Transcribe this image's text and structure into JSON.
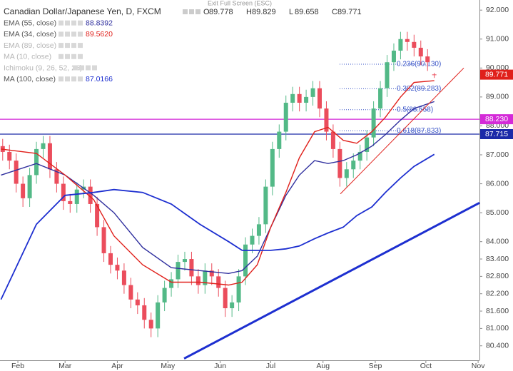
{
  "chart_data": {
    "type": "candlestick",
    "title": "Canadian Dollar/Japanese Yen, D, FXCM",
    "ohlc": [
      {
        "key": "O",
        "value": 89.778
      },
      {
        "key": "H",
        "value": 89.829
      },
      {
        "key": "L",
        "value": 89.658
      },
      {
        "key": "C",
        "value": 89.771
      }
    ],
    "exit_hint": "Exit Full Screen (ESC)",
    "up_color": "#53b987",
    "down_color": "#eb4d5c",
    "x": [
      23,
      27,
      31,
      35,
      39,
      43,
      47,
      51,
      55,
      59,
      63,
      67,
      71,
      75,
      79,
      83,
      87,
      91,
      95,
      99,
      103,
      107,
      111,
      115,
      119,
      123,
      127,
      131,
      135,
      139,
      143,
      147,
      151,
      155,
      159,
      163,
      167,
      171,
      175,
      179,
      183,
      187,
      191,
      195,
      199,
      203,
      207,
      211,
      215,
      219,
      223,
      227,
      231,
      235,
      239,
      243,
      247,
      251,
      255,
      259,
      263,
      267,
      271,
      275,
      279
    ],
    "open": [
      87.3,
      87.1,
      86.8,
      86.0,
      85.5,
      86.3,
      87.2,
      87.4,
      86.5,
      86.0,
      85.4,
      85.3,
      85.8,
      85.9,
      85.3,
      84.5,
      83.6,
      83.2,
      83.0,
      82.5,
      82.0,
      81.8,
      81.3,
      81.0,
      81.9,
      82.4,
      82.7,
      83.3,
      83.4,
      82.8,
      82.5,
      83.0,
      82.8,
      82.4,
      81.7,
      81.9,
      82.8,
      83.9,
      84.2,
      84.6,
      85.9,
      87.2,
      87.8,
      88.8,
      89.1,
      88.8,
      89.0,
      89.3,
      88.6,
      87.8,
      87.2,
      86.2,
      86.5,
      86.8,
      87.1,
      87.6,
      88.6,
      89.3,
      90.2,
      90.6,
      91.0,
      90.9,
      90.7,
      90.4,
      89.778
    ],
    "high": [
      87.55,
      87.35,
      87.05,
      86.25,
      86.55,
      87.45,
      87.65,
      87.65,
      86.75,
      86.25,
      85.65,
      86.05,
      86.15,
      86.15,
      85.55,
      84.75,
      83.85,
      83.45,
      83.25,
      82.75,
      82.25,
      82.05,
      81.55,
      82.15,
      82.65,
      82.95,
      83.55,
      83.65,
      83.65,
      83.05,
      83.25,
      83.25,
      83.05,
      82.65,
      82.15,
      83.05,
      84.15,
      84.45,
      84.85,
      86.15,
      87.45,
      88.05,
      89.05,
      89.35,
      89.35,
      89.25,
      89.55,
      89.55,
      88.85,
      88.05,
      87.45,
      86.75,
      87.05,
      87.35,
      87.85,
      88.85,
      89.55,
      90.45,
      90.85,
      91.25,
      91.25,
      91.15,
      90.95,
      90.65,
      89.829
    ],
    "low": [
      86.8,
      86.5,
      85.7,
      85.2,
      85.2,
      86.0,
      86.9,
      86.2,
      85.7,
      85.1,
      85.0,
      85.0,
      85.5,
      85.0,
      84.2,
      83.3,
      82.9,
      82.7,
      82.2,
      81.7,
      81.5,
      81.0,
      80.7,
      80.7,
      81.6,
      82.1,
      82.4,
      83.0,
      82.5,
      82.2,
      82.2,
      82.5,
      82.1,
      81.4,
      81.4,
      81.6,
      82.5,
      83.6,
      83.9,
      84.3,
      85.6,
      86.9,
      87.5,
      88.5,
      88.5,
      88.5,
      88.7,
      88.3,
      87.5,
      86.9,
      85.9,
      85.9,
      86.2,
      86.5,
      86.8,
      87.3,
      88.3,
      89.0,
      89.9,
      90.3,
      90.6,
      90.4,
      90.1,
      89.9,
      89.658
    ],
    "close": [
      87.1,
      86.8,
      86.0,
      85.5,
      86.3,
      87.2,
      87.4,
      86.5,
      86.0,
      85.4,
      85.3,
      85.8,
      85.9,
      85.3,
      84.5,
      83.6,
      83.2,
      83.0,
      82.5,
      82.0,
      81.8,
      81.3,
      81.0,
      81.9,
      82.4,
      82.7,
      83.3,
      83.4,
      82.8,
      82.5,
      83.0,
      82.8,
      82.4,
      81.7,
      81.9,
      82.8,
      83.9,
      84.2,
      84.6,
      85.9,
      87.2,
      87.8,
      88.8,
      89.1,
      88.8,
      89.0,
      89.3,
      88.6,
      87.8,
      87.2,
      86.2,
      86.5,
      86.8,
      87.1,
      87.6,
      88.6,
      89.3,
      90.2,
      90.6,
      91.0,
      90.9,
      90.7,
      90.4,
      90.2,
      89.771
    ],
    "series": [
      {
        "name": "EMA (55, close)",
        "value_label": "88.8392",
        "color": "#2f2f9e",
        "x": [
          22,
          43,
          60,
          77,
          89,
          106,
          123,
          140,
          157,
          165,
          174,
          182,
          191,
          199,
          208,
          216,
          225,
          233,
          242,
          250,
          259,
          267,
          279
        ],
        "values": [
          86.3,
          86.7,
          86.3,
          85.6,
          85.0,
          83.8,
          83.1,
          83.0,
          82.9,
          83.0,
          83.5,
          84.5,
          85.6,
          86.3,
          86.8,
          86.7,
          86.8,
          87.0,
          87.3,
          87.7,
          88.2,
          88.6,
          88.8392
        ]
      },
      {
        "name": "EMA (34, close)",
        "value_label": "89.5620",
        "color": "#e0201b",
        "x": [
          22,
          43,
          60,
          77,
          89,
          106,
          123,
          140,
          157,
          165,
          174,
          182,
          191,
          199,
          208,
          216,
          225,
          233,
          242,
          250,
          259,
          267,
          279
        ],
        "values": [
          87.2,
          87.05,
          86.3,
          85.45,
          84.2,
          83.2,
          82.6,
          82.6,
          82.5,
          82.6,
          83.2,
          84.5,
          85.7,
          86.9,
          87.8,
          87.95,
          87.5,
          87.4,
          87.8,
          88.3,
          89.0,
          89.5,
          89.562
        ]
      },
      {
        "name": "MA (100, close)",
        "value_label": "87.0166",
        "color": "#1d2fd0",
        "x": [
          22,
          43,
          60,
          77,
          89,
          106,
          123,
          140,
          157,
          165,
          174,
          182,
          191,
          199,
          208,
          216,
          225,
          233,
          242,
          250,
          259,
          267,
          279
        ],
        "values": [
          82.0,
          84.6,
          85.6,
          85.7,
          85.8,
          85.7,
          85.3,
          84.6,
          84.0,
          83.7,
          83.7,
          83.7,
          83.75,
          83.85,
          84.1,
          84.3,
          84.5,
          84.9,
          85.2,
          85.7,
          86.2,
          86.6,
          87.0166
        ]
      }
    ],
    "hidden_studies": [
      "EMA (89, close)",
      "MA (10, close)",
      "Ichimoku (9, 26, 52, 26)"
    ],
    "trendlines": [
      {
        "color": "#1d2fd0",
        "x": [
          130.6,
          305.8
        ],
        "y": [
          79.96,
          85.34
        ]
      },
      {
        "color": "#e0201b",
        "x": [
          223.3,
          296.5
        ],
        "y": [
          85.65,
          90.0
        ]
      }
    ],
    "fib_levels": [
      {
        "value": 90.13,
        "label": "0.236(90.130)"
      },
      {
        "value": 89.283,
        "label": "0.382(89.283)"
      },
      {
        "value": 88.558,
        "label": "0.5(88.558)"
      },
      {
        "value": 87.833,
        "label": "0.618(87.833)"
      }
    ],
    "price_lines": [
      {
        "value": 88.23,
        "label": "88.230",
        "color": "#d42ad8"
      },
      {
        "value": 87.715,
        "label": "87.715",
        "color": "#1b2aa8"
      }
    ],
    "last_price": {
      "value": 89.771,
      "label": "89.771",
      "color": "#e0201b"
    },
    "xlim": [
      21.4,
      305.8
    ],
    "xticks": [
      {
        "value": 32,
        "label": "Feb"
      },
      {
        "value": 60,
        "label": "Mar"
      },
      {
        "value": 91,
        "label": "Apr"
      },
      {
        "value": 121,
        "label": "May"
      },
      {
        "value": 152,
        "label": "Jun"
      },
      {
        "value": 182,
        "label": "Jul"
      },
      {
        "value": 213,
        "label": "Aug"
      },
      {
        "value": 244,
        "label": "Sep"
      },
      {
        "value": 274,
        "label": "Oct"
      },
      {
        "value": 305,
        "label": "Nov"
      }
    ],
    "ylim": [
      79.9,
      92.35
    ],
    "yticks": [
      {
        "value": 92,
        "label": "92.000"
      },
      {
        "value": 91,
        "label": "91.000"
      },
      {
        "value": 90,
        "label": "90.000"
      },
      {
        "value": 89,
        "label": "89.000"
      },
      {
        "value": 88,
        "label": "88.000"
      },
      {
        "value": 87,
        "label": "87.000"
      },
      {
        "value": 86,
        "label": "86.000"
      },
      {
        "value": 85,
        "label": "85.000"
      },
      {
        "value": 84,
        "label": "84.000"
      },
      {
        "value": 83.4,
        "label": "83.400"
      },
      {
        "value": 82.8,
        "label": "82.800"
      },
      {
        "value": 82.2,
        "label": "82.200"
      },
      {
        "value": 81.6,
        "label": "81.600"
      },
      {
        "value": 81,
        "label": "81.000"
      },
      {
        "value": 80.4,
        "label": "80.400"
      }
    ],
    "grid": false
  }
}
